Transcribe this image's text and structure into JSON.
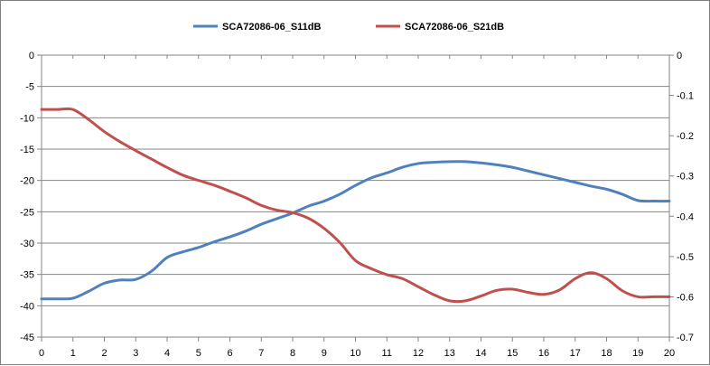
{
  "chart_data": {
    "type": "line",
    "title": "",
    "xlabel": "",
    "ylabel": "",
    "xlim": [
      0,
      20
    ],
    "ylim": [
      -45,
      0
    ],
    "y2lim": [
      -0.7,
      0
    ],
    "grid": true,
    "legend_position": "top",
    "x_ticks": [
      "0",
      "1",
      "2",
      "3",
      "4",
      "5",
      "6",
      "7",
      "8",
      "9",
      "10",
      "11",
      "12",
      "13",
      "14",
      "15",
      "16",
      "17",
      "18",
      "19",
      "20"
    ],
    "y_ticks": [
      "0",
      "-5",
      "-10",
      "-15",
      "-20",
      "-25",
      "-30",
      "-35",
      "-40",
      "-45"
    ],
    "y2_ticks": [
      "0",
      "-0.1",
      "-0.2",
      "-0.3",
      "-0.4",
      "-0.5",
      "-0.6",
      "-0.7"
    ],
    "series": [
      {
        "name": "SCA72086-06_S11dB",
        "axis": "left",
        "color": "#4f81bd",
        "x": [
          0,
          0.5,
          1,
          1.5,
          2,
          2.5,
          3,
          3.5,
          4,
          4.5,
          5,
          5.5,
          6,
          6.5,
          7,
          7.5,
          8,
          8.5,
          9,
          9.5,
          10,
          10.5,
          11,
          11.5,
          12,
          12.5,
          13,
          13.5,
          14,
          14.5,
          15,
          15.5,
          16,
          16.5,
          17,
          17.5,
          18,
          18.5,
          19,
          19.5,
          20
        ],
        "values": [
          -38.9,
          -38.9,
          -38.8,
          -37.7,
          -36.4,
          -35.9,
          -35.8,
          -34.5,
          -32.3,
          -31.4,
          -30.7,
          -29.8,
          -29.0,
          -28.1,
          -27.0,
          -26.1,
          -25.2,
          -24.1,
          -23.3,
          -22.2,
          -20.8,
          -19.6,
          -18.8,
          -17.9,
          -17.3,
          -17.1,
          -17.0,
          -17.0,
          -17.2,
          -17.5,
          -17.9,
          -18.5,
          -19.1,
          -19.7,
          -20.3,
          -20.9,
          -21.4,
          -22.2,
          -23.2,
          -23.3,
          -23.3
        ]
      },
      {
        "name": "SCA72086-06_S21dB",
        "axis": "right",
        "color": "#c0504d",
        "x": [
          0,
          0.5,
          1,
          1.5,
          2,
          2.5,
          3,
          3.5,
          4,
          4.5,
          5,
          5.5,
          6,
          6.5,
          7,
          7.5,
          8,
          8.5,
          9,
          9.5,
          10,
          10.5,
          11,
          11.5,
          12,
          12.5,
          13,
          13.5,
          14,
          14.5,
          15,
          15.5,
          16,
          16.5,
          17,
          17.5,
          18,
          18.5,
          19,
          19.5,
          20
        ],
        "values": [
          -0.135,
          -0.135,
          -0.135,
          -0.16,
          -0.19,
          -0.215,
          -0.237,
          -0.258,
          -0.279,
          -0.298,
          -0.311,
          -0.323,
          -0.338,
          -0.354,
          -0.373,
          -0.385,
          -0.391,
          -0.405,
          -0.43,
          -0.465,
          -0.51,
          -0.53,
          -0.545,
          -0.555,
          -0.575,
          -0.595,
          -0.61,
          -0.61,
          -0.598,
          -0.584,
          -0.581,
          -0.589,
          -0.594,
          -0.583,
          -0.555,
          -0.54,
          -0.555,
          -0.585,
          -0.6,
          -0.6,
          -0.6
        ]
      }
    ]
  }
}
